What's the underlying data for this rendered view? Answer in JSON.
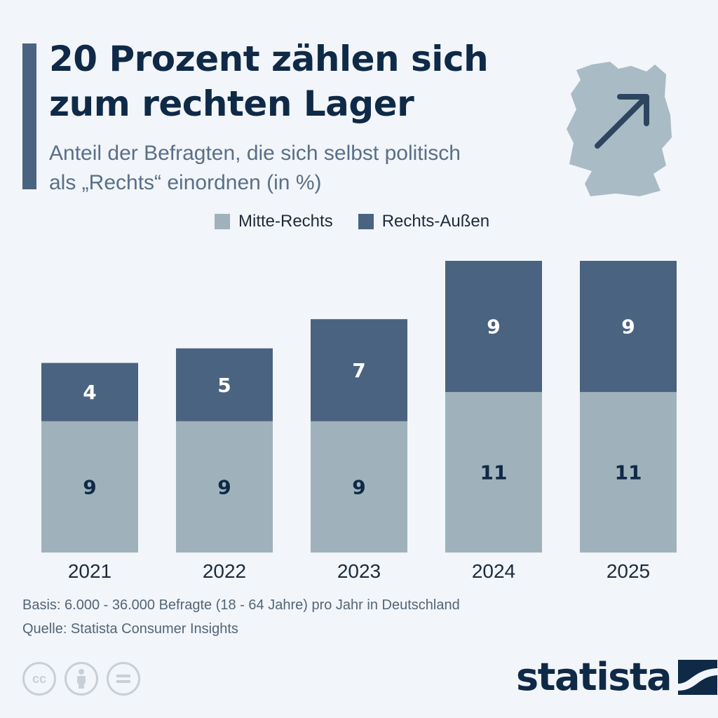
{
  "header": {
    "title_line1": "20 Prozent zählen sich",
    "title_line2": "zum rechten Lager",
    "subtitle_line1": "Anteil der Befragten, die sich selbst politisch",
    "subtitle_line2": "als „Rechts“ einordnen (in %)"
  },
  "colors": {
    "mitte_rechts": "#9fb2bb",
    "rechts_aussen": "#4a6380",
    "text_dark": "#0f2a47",
    "background": "#f2f5f9"
  },
  "chart_data": {
    "type": "bar",
    "stacked": true,
    "categories": [
      "2021",
      "2022",
      "2023",
      "2024",
      "2025"
    ],
    "series": [
      {
        "name": "Mitte-Rechts",
        "values": [
          9,
          9,
          9,
          11,
          11
        ]
      },
      {
        "name": "Rechts-Außen",
        "values": [
          4,
          5,
          7,
          9,
          9
        ]
      }
    ],
    "ylim": [
      0,
      20
    ],
    "grid": false,
    "legend_position": "top-center",
    "data_labels": true
  },
  "footer": {
    "basis": "Basis: 6.000 - 36.000 Befragte (18 - 64 Jahre) pro Jahr in Deutschland",
    "source": "Quelle: Statista Consumer Insights",
    "logo_text": "statista",
    "cc_icons": [
      "cc-icon",
      "attribution-icon",
      "no-derivatives-icon"
    ],
    "cc_label": "cc"
  },
  "decor": {
    "map_icon": "germany-map-icon",
    "arrow_icon": "arrow-up-right-icon"
  }
}
